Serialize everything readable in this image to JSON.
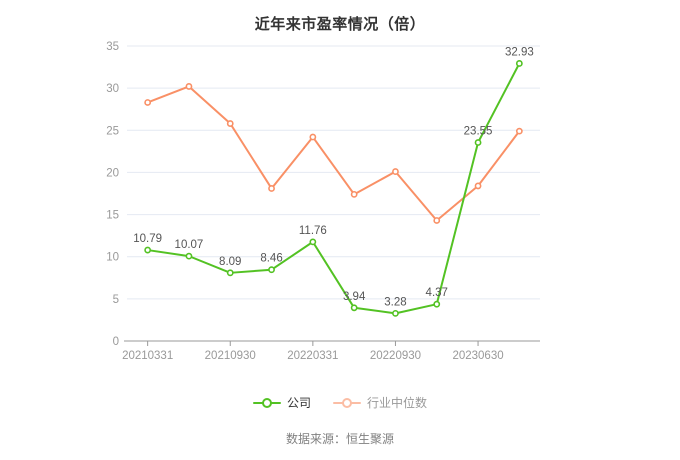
{
  "chart_data": {
    "type": "line",
    "title": "近年来市盈率情况（倍）",
    "x_count": 10,
    "x_tick_labels": [
      "20210331",
      "20210930",
      "20220331",
      "20220930",
      "20230630"
    ],
    "x_tick_indexes": [
      0,
      2,
      4,
      6,
      8
    ],
    "ylim": [
      0,
      35
    ],
    "y_ticks": [
      0,
      5,
      10,
      15,
      20,
      25,
      30,
      35
    ],
    "grid": true,
    "legend_position": "bottom",
    "series": [
      {
        "id": "industry",
        "name": "行业中位数",
        "values": [
          28.3,
          30.2,
          25.8,
          18.1,
          24.2,
          17.4,
          20.1,
          14.3,
          18.4,
          24.9
        ],
        "show_point_labels": false
      },
      {
        "id": "company",
        "name": "公司",
        "values": [
          10.79,
          10.07,
          8.09,
          8.46,
          11.76,
          3.94,
          3.28,
          4.37,
          23.55,
          32.93
        ],
        "point_labels": [
          "10.79",
          "10.07",
          "8.09",
          "8.46",
          "11.76",
          "3.94",
          "3.28",
          "4.37",
          "23.55",
          "32.93"
        ],
        "show_point_labels": true
      }
    ]
  },
  "legend": {
    "items": [
      {
        "id": "company",
        "label": "公司"
      },
      {
        "id": "industry",
        "label": "行业中位数"
      }
    ]
  },
  "source_note": "数据来源：恒生聚源",
  "colors": {
    "company": "#53c223",
    "industry": "#f99066",
    "industry_legend_marker": "#fbbda4",
    "company_legend_marker": "#53c223",
    "grid_line": "#e4e9f2",
    "axis_line": "#999999",
    "axis_text": "#999999",
    "data_label": "#555555",
    "title_text": "#333333",
    "legend_text_company": "#333333",
    "legend_text_industry": "#999999",
    "source_text": "#808080",
    "background": "#ffffff"
  }
}
